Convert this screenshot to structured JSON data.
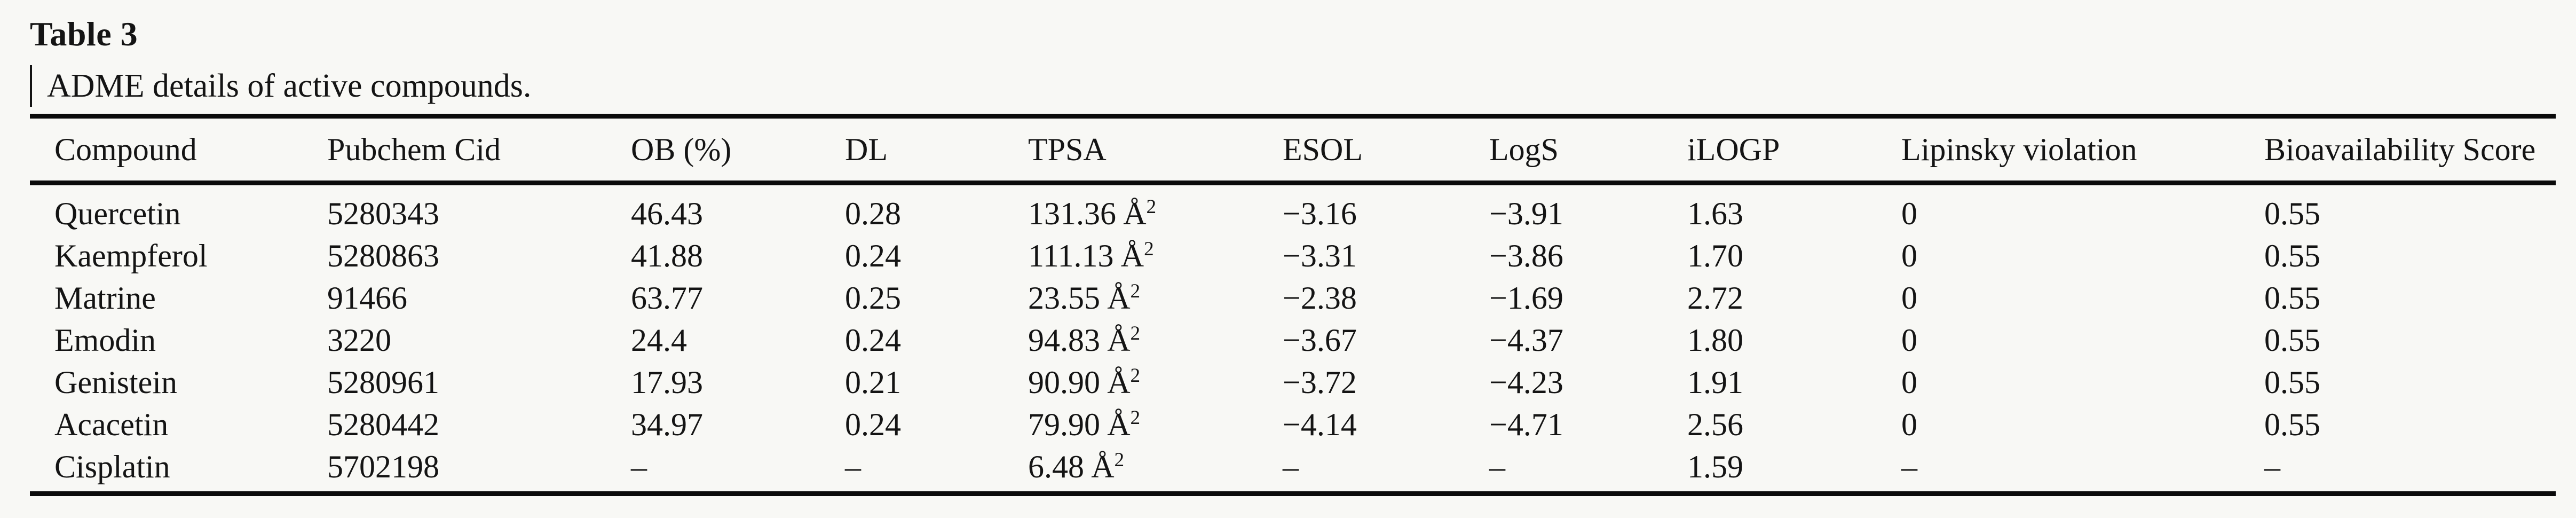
{
  "title": "Table 3",
  "caption": "ADME details of active compounds.",
  "table": {
    "columns": [
      "Compound",
      "Pubchem Cid",
      "OB (%)",
      "DL",
      "TPSA",
      "ESOL",
      "LogS",
      "iLOGP",
      "Lipinsky violation",
      "Bioavailability Score"
    ],
    "tpsa_unit": "Å",
    "tpsa_exponent": "2",
    "rows": [
      {
        "compound": "Quercetin",
        "pubchem_cid": "5280343",
        "ob": "46.43",
        "dl": "0.28",
        "tpsa": "131.36",
        "esol": "−3.16",
        "logs": "−3.91",
        "ilogp": "1.63",
        "lipinsky": "0",
        "bioavailability": "0.55"
      },
      {
        "compound": "Kaempferol",
        "pubchem_cid": "5280863",
        "ob": "41.88",
        "dl": "0.24",
        "tpsa": "111.13",
        "esol": "−3.31",
        "logs": "−3.86",
        "ilogp": "1.70",
        "lipinsky": "0",
        "bioavailability": "0.55"
      },
      {
        "compound": "Matrine",
        "pubchem_cid": "91466",
        "ob": "63.77",
        "dl": "0.25",
        "tpsa": "23.55",
        "esol": "−2.38",
        "logs": "−1.69",
        "ilogp": "2.72",
        "lipinsky": "0",
        "bioavailability": "0.55"
      },
      {
        "compound": "Emodin",
        "pubchem_cid": "3220",
        "ob": "24.4",
        "dl": "0.24",
        "tpsa": "94.83",
        "esol": "−3.67",
        "logs": "−4.37",
        "ilogp": "1.80",
        "lipinsky": "0",
        "bioavailability": "0.55"
      },
      {
        "compound": "Genistein",
        "pubchem_cid": "5280961",
        "ob": "17.93",
        "dl": "0.21",
        "tpsa": "90.90",
        "esol": "−3.72",
        "logs": "−4.23",
        "ilogp": "1.91",
        "lipinsky": "0",
        "bioavailability": "0.55"
      },
      {
        "compound": "Acacetin",
        "pubchem_cid": "5280442",
        "ob": "34.97",
        "dl": "0.24",
        "tpsa": "79.90",
        "esol": "−4.14",
        "logs": "−4.71",
        "ilogp": "2.56",
        "lipinsky": "0",
        "bioavailability": "0.55"
      },
      {
        "compound": "Cisplatin",
        "pubchem_cid": "5702198",
        "ob": "–",
        "dl": "–",
        "tpsa": "6.48",
        "esol": "–",
        "logs": "–",
        "ilogp": "1.59",
        "lipinsky": "–",
        "bioavailability": "–"
      }
    ]
  }
}
